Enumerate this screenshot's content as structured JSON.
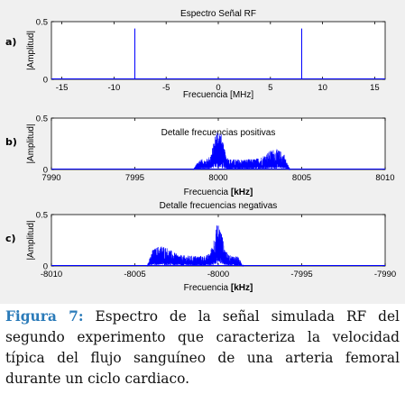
{
  "colors": {
    "line": "#0000ff",
    "axes_bg": "#ffffff",
    "figure_bg": "#f0f0f0",
    "caption_label": "#2b7bb9"
  },
  "panel_labels": [
    "a)",
    "b)",
    "c)"
  ],
  "caption": {
    "label": "Figura 7:",
    "text": "Espectro de la señal simulada RF del segundo experimento que caracteriza la velocidad típica del flujo sanguíneo de una arteria femoral durante un ciclo cardiaco."
  },
  "chart_data": [
    {
      "type": "line",
      "title": "Espectro Señal RF",
      "xlabel": "Frecuencia [MHz]",
      "ylabel": "|Amplitud|",
      "xlim": [
        -16,
        16
      ],
      "ylim": [
        0,
        0.5
      ],
      "xticks": [
        "-15",
        "-10",
        "-5",
        "0",
        "5",
        "10",
        "15"
      ],
      "xtick_values": [
        -15,
        -10,
        -5,
        0,
        5,
        10,
        15
      ],
      "yticks": [
        "0",
        "0.5"
      ],
      "ytick_values": [
        0,
        0.5
      ],
      "grid": false,
      "peaks": [
        {
          "x": -8,
          "y": 0.44
        },
        {
          "x": 8,
          "y": 0.44
        }
      ]
    },
    {
      "type": "line",
      "title": "Detalle frecuencias positivas",
      "xlabel_prefix": "Frecuencia ",
      "xlabel_unit": "[kHz]",
      "ylabel": "|Amplitud|",
      "xlim": [
        7990,
        8010
      ],
      "ylim": [
        0,
        0.5
      ],
      "xticks": [
        "7990",
        "7995",
        "8000",
        "8005",
        "8010"
      ],
      "xtick_values": [
        7990,
        7995,
        8000,
        8005,
        8010
      ],
      "yticks": [
        "0",
        "0.5"
      ],
      "ytick_values": [
        0,
        0.5
      ],
      "grid": false,
      "band": {
        "start": 7998.5,
        "end": 8004.3,
        "peak_at": 8000,
        "peak_value": 0.42,
        "base_level": 0.1,
        "shoulder_level": 0.2
      }
    },
    {
      "type": "line",
      "title": "Detalle frecuencias negativas",
      "xlabel_prefix": "Frecuencia ",
      "xlabel_unit": "[kHz]",
      "ylabel": "|Amplitud|",
      "xlim": [
        -8010,
        -7990
      ],
      "ylim": [
        0,
        0.5
      ],
      "xticks": [
        "-8010",
        "-8005",
        "-8000",
        "-7995",
        "-7990"
      ],
      "xtick_values": [
        -8010,
        -8005,
        -8000,
        -7995,
        -7990
      ],
      "yticks": [
        "0",
        "0.5"
      ],
      "ytick_values": [
        0,
        0.5
      ],
      "grid": false,
      "band": {
        "start": -8004.3,
        "end": -7998.5,
        "peak_at": -8000,
        "peak_value": 0.42,
        "base_level": 0.1,
        "shoulder_level": 0.2
      }
    }
  ]
}
